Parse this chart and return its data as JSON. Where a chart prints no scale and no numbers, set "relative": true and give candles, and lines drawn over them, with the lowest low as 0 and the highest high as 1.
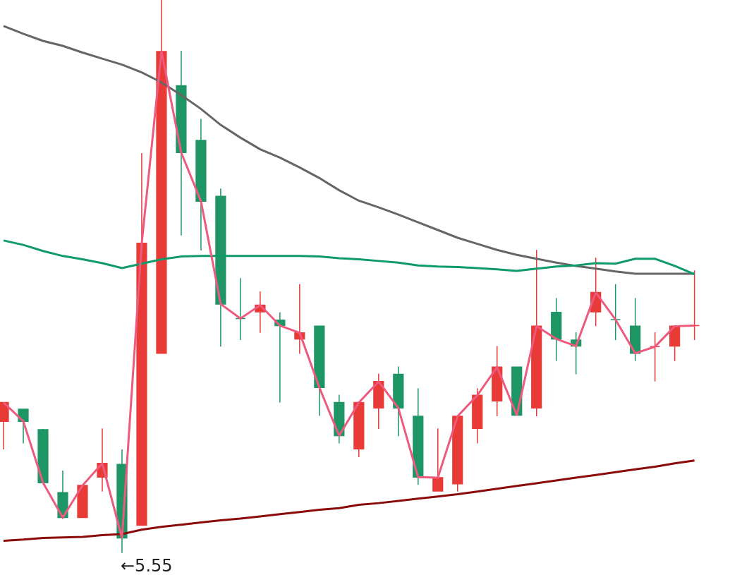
{
  "chart_data": {
    "type": "candlestick",
    "relative": true,
    "categories": [
      null,
      null,
      null,
      null,
      null,
      null,
      null,
      null,
      null,
      null,
      null,
      null,
      null,
      null,
      null,
      null,
      null,
      null,
      null,
      null,
      null,
      null,
      null,
      null,
      null,
      null,
      null,
      null,
      null,
      null,
      null,
      null,
      null,
      null,
      null,
      null
    ],
    "ohlc": [
      [
        0.238,
        0.272,
        0.187,
        0.272
      ],
      [
        0.26,
        0.26,
        0.198,
        0.238
      ],
      [
        0.223,
        0.224,
        0.127,
        0.127
      ],
      [
        0.109,
        0.149,
        0.064,
        0.064
      ],
      [
        0.064,
        0.122,
        0.064,
        0.122
      ],
      [
        0.137,
        0.225,
        0.111,
        0.162
      ],
      [
        0.16,
        0.187,
        0,
        0.027
      ],
      [
        0.05,
        0.723,
        0.05,
        0.56
      ],
      [
        0.361,
        1,
        0.361,
        0.907
      ],
      [
        0.845,
        0.908,
        0.574,
        0.724
      ],
      [
        0.746,
        0.785,
        0.547,
        0.636
      ],
      [
        0.645,
        0.659,
        0.373,
        0.45
      ],
      [
        0.424,
        0.497,
        0.385,
        0.424
      ],
      [
        0.436,
        0.473,
        0.398,
        0.448
      ],
      [
        0.421,
        0.435,
        0.272,
        0.411
      ],
      [
        0.387,
        0.486,
        0.36,
        0.398
      ],
      [
        0.41,
        0.41,
        0.248,
        0.299
      ],
      [
        0.272,
        0.286,
        0.198,
        0.212
      ],
      [
        0.188,
        0.272,
        0.173,
        0.272
      ],
      [
        0.262,
        0.324,
        0.224,
        0.31
      ],
      [
        0.323,
        0.337,
        0.211,
        0.262
      ],
      [
        0.247,
        0.298,
        0.123,
        0.137
      ],
      [
        0.112,
        0.225,
        0.112,
        0.136
      ],
      [
        0.125,
        0.247,
        0.111,
        0.247
      ],
      [
        0.225,
        0.298,
        0.198,
        0.285
      ],
      [
        0.275,
        0.374,
        0.247,
        0.336
      ],
      [
        0.336,
        0.336,
        0.249,
        0.249
      ],
      [
        0.262,
        0.548,
        0.247,
        0.41
      ],
      [
        0.435,
        0.461,
        0.347,
        0.387
      ],
      [
        0.385,
        0.399,
        0.323,
        0.374
      ],
      [
        0.436,
        0.534,
        0.41,
        0.471
      ],
      [
        0.422,
        0.486,
        0.385,
        0.422
      ],
      [
        0.41,
        0.461,
        0.347,
        0.361
      ],
      [
        0.373,
        0.399,
        0.31,
        0.373
      ],
      [
        0.374,
        0.41,
        0.347,
        0.41
      ],
      [
        0.411,
        0.511,
        0.385,
        0.411
      ]
    ],
    "colors": [
      "#e83a36",
      "#1d9565",
      "#1d9565",
      "#1d9565",
      "#e83a36",
      "#e83a36",
      "#1d9565",
      "#e83a36",
      "#e83a36",
      "#1d9565",
      "#1d9565",
      "#1d9565",
      "#1d9565",
      "#e83a36",
      "#1d9565",
      "#e83a36",
      "#1d9565",
      "#1d9565",
      "#e83a36",
      "#e83a36",
      "#1d9565",
      "#1d9565",
      "#e83a36",
      "#e83a36",
      "#e83a36",
      "#e83a36",
      "#1d9565",
      "#e83a36",
      "#1d9565",
      "#1d9565",
      "#e83a36",
      "#1d9565",
      "#1d9565",
      "#e83a36",
      "#e83a36",
      "#e83a36"
    ],
    "series": [
      {
        "type": "line",
        "color": "#666666",
        "values": [
          0.953,
          0.939,
          0.926,
          0.917,
          0.905,
          0.894,
          0.883,
          0.869,
          0.851,
          0.828,
          0.803,
          0.774,
          0.751,
          0.73,
          0.715,
          0.697,
          0.678,
          0.656,
          0.637,
          0.625,
          0.612,
          0.598,
          0.584,
          0.57,
          0.559,
          0.548,
          0.539,
          0.532,
          0.525,
          0.519,
          0.514,
          0.509,
          0.505,
          0.505,
          0.505,
          0.505
        ]
      },
      {
        "type": "line",
        "color": "#0f9a6a",
        "values": [
          0.565,
          0.557,
          0.546,
          0.537,
          0.531,
          0.524,
          0.515,
          0.523,
          0.531,
          0.536,
          0.537,
          0.537,
          0.537,
          0.537,
          0.537,
          0.537,
          0.536,
          0.533,
          0.531,
          0.528,
          0.525,
          0.52,
          0.518,
          0.517,
          0.515,
          0.513,
          0.51,
          0.514,
          0.518,
          0.52,
          0.524,
          0.523,
          0.532,
          0.532,
          0.519,
          0.504
        ]
      },
      {
        "type": "line",
        "color": "#8b0a0a",
        "values": [
          0.022,
          0.024,
          0.027,
          0.028,
          0.029,
          0.032,
          0.034,
          0.042,
          0.047,
          0.051,
          0.055,
          0.059,
          0.062,
          0.066,
          0.07,
          0.074,
          0.078,
          0.081,
          0.087,
          0.09,
          0.094,
          0.098,
          0.102,
          0.106,
          0.111,
          0.116,
          0.121,
          0.126,
          0.131,
          0.136,
          0.141,
          0.146,
          0.151,
          0.156,
          0.162,
          0.167
        ]
      },
      {
        "type": "line",
        "color": "#ee5a7e",
        "values": [
          0.272,
          0.238,
          0.127,
          0.064,
          0.122,
          0.162,
          0.027,
          0.56,
          0.907,
          0.724,
          0.636,
          0.45,
          0.424,
          0.448,
          0.411,
          0.398,
          0.299,
          0.212,
          0.272,
          0.31,
          0.262,
          0.137,
          0.136,
          0.247,
          0.285,
          0.336,
          0.249,
          0.41,
          0.387,
          0.374,
          0.471,
          0.422,
          0.361,
          0.373,
          0.41,
          0.411
        ]
      }
    ],
    "annotations": [
      "←5.55"
    ]
  }
}
